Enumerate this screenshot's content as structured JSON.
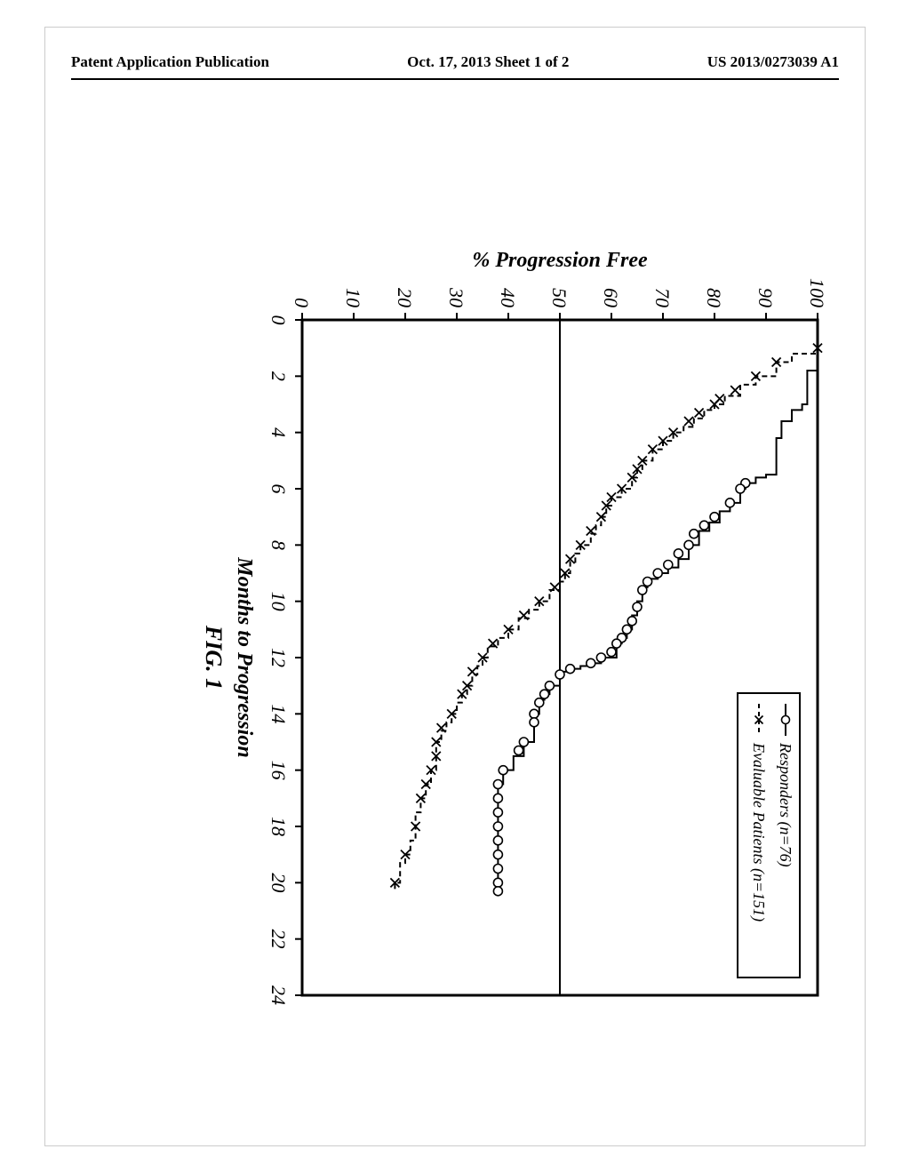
{
  "header": {
    "left": "Patent Application Publication",
    "center": "Oct. 17, 2013  Sheet 1 of 2",
    "right": "US 2013/0273039 A1"
  },
  "chart": {
    "type": "survival-step",
    "title": "FIG. 1",
    "xlabel": "Months to Progression",
    "ylabel": "% Progression Free",
    "xlim": [
      0,
      24
    ],
    "ylim": [
      0,
      100
    ],
    "xtick_step": 2,
    "ytick_step": 10,
    "xticks": [
      0,
      2,
      4,
      6,
      8,
      10,
      12,
      14,
      16,
      18,
      20,
      22,
      24
    ],
    "yticks": [
      0,
      10,
      20,
      30,
      40,
      50,
      60,
      70,
      80,
      90,
      100
    ],
    "border_width": 3,
    "reference_line_y": 50,
    "reference_line_color": "#000000",
    "background_color": "#ffffff",
    "axis_color": "#000000",
    "tick_fontsize": 22,
    "label_fontsize": 24,
    "title_fontsize": 26,
    "legend": {
      "position": "top-right",
      "border_color": "#000000",
      "border_width": 2,
      "items": [
        {
          "label": "Responders (n=76)",
          "marker": "circle",
          "line_style": "solid"
        },
        {
          "label": "Evaluable Patients (n=151)",
          "marker": "x",
          "line_style": "dashed"
        }
      ]
    },
    "series": [
      {
        "name": "Responders",
        "marker": "circle",
        "marker_size": 5,
        "line_style": "solid",
        "line_width": 2,
        "color": "#000000",
        "step_points": [
          [
            0,
            100
          ],
          [
            1.3,
            100
          ],
          [
            1.8,
            98
          ],
          [
            3.0,
            97
          ],
          [
            3.2,
            95
          ],
          [
            3.6,
            93
          ],
          [
            4.2,
            92
          ],
          [
            5.5,
            90
          ],
          [
            5.6,
            88
          ],
          [
            5.8,
            86
          ],
          [
            6.0,
            85
          ],
          [
            6.5,
            83
          ],
          [
            6.8,
            81
          ],
          [
            7.2,
            79
          ],
          [
            7.5,
            77
          ],
          [
            8.0,
            75
          ],
          [
            8.5,
            73
          ],
          [
            8.8,
            71
          ],
          [
            9.0,
            69
          ],
          [
            9.2,
            67
          ],
          [
            9.5,
            66
          ],
          [
            10.0,
            65
          ],
          [
            10.5,
            64
          ],
          [
            11.0,
            63
          ],
          [
            11.3,
            62
          ],
          [
            11.5,
            61
          ],
          [
            12.0,
            58
          ],
          [
            12.2,
            56
          ],
          [
            12.3,
            54
          ],
          [
            12.4,
            52
          ],
          [
            12.5,
            50
          ],
          [
            13.0,
            48
          ],
          [
            13.3,
            47
          ],
          [
            13.5,
            46
          ],
          [
            14.0,
            45
          ],
          [
            14.5,
            45
          ],
          [
            15.0,
            43
          ],
          [
            15.5,
            41
          ],
          [
            16.0,
            39
          ],
          [
            16.5,
            38
          ],
          [
            17.0,
            38
          ],
          [
            17.5,
            38
          ],
          [
            18.0,
            38
          ],
          [
            18.5,
            38
          ],
          [
            19.0,
            38
          ],
          [
            19.5,
            38
          ],
          [
            20.0,
            38
          ],
          [
            20.3,
            38
          ]
        ],
        "censored_points": [
          [
            5.8,
            86
          ],
          [
            6.0,
            85
          ],
          [
            6.5,
            83
          ],
          [
            7.0,
            80
          ],
          [
            7.3,
            78
          ],
          [
            7.6,
            76
          ],
          [
            8.0,
            75
          ],
          [
            8.3,
            73
          ],
          [
            8.7,
            71
          ],
          [
            9.0,
            69
          ],
          [
            9.3,
            67
          ],
          [
            9.6,
            66
          ],
          [
            10.2,
            65
          ],
          [
            10.7,
            64
          ],
          [
            11.0,
            63
          ],
          [
            11.3,
            62
          ],
          [
            11.5,
            61
          ],
          [
            11.8,
            60
          ],
          [
            12.0,
            58
          ],
          [
            12.2,
            56
          ],
          [
            12.4,
            52
          ],
          [
            12.6,
            50
          ],
          [
            13.0,
            48
          ],
          [
            13.3,
            47
          ],
          [
            13.6,
            46
          ],
          [
            14.0,
            45
          ],
          [
            14.3,
            45
          ],
          [
            15.0,
            43
          ],
          [
            15.3,
            42
          ],
          [
            16.0,
            39
          ],
          [
            16.5,
            38
          ],
          [
            17.0,
            38
          ],
          [
            17.5,
            38
          ],
          [
            18.0,
            38
          ],
          [
            18.5,
            38
          ],
          [
            19.0,
            38
          ],
          [
            19.5,
            38
          ],
          [
            20.0,
            38
          ],
          [
            20.3,
            38
          ]
        ]
      },
      {
        "name": "Evaluable Patients",
        "marker": "x",
        "marker_size": 5,
        "line_style": "dashed",
        "line_width": 2,
        "color": "#000000",
        "dash_pattern": "6,4",
        "step_points": [
          [
            0,
            100
          ],
          [
            1.0,
            100
          ],
          [
            1.2,
            95
          ],
          [
            1.5,
            92
          ],
          [
            2.0,
            88
          ],
          [
            2.3,
            85
          ],
          [
            2.7,
            82
          ],
          [
            3.0,
            80
          ],
          [
            3.2,
            78
          ],
          [
            3.5,
            76
          ],
          [
            3.8,
            74
          ],
          [
            4.0,
            72
          ],
          [
            4.3,
            70
          ],
          [
            4.6,
            68
          ],
          [
            5.0,
            66
          ],
          [
            5.3,
            65
          ],
          [
            5.6,
            64
          ],
          [
            6.0,
            62
          ],
          [
            6.3,
            60
          ],
          [
            6.6,
            59
          ],
          [
            7.0,
            58
          ],
          [
            7.3,
            57
          ],
          [
            7.6,
            56
          ],
          [
            8.0,
            54
          ],
          [
            8.3,
            53
          ],
          [
            8.6,
            52
          ],
          [
            9.0,
            51
          ],
          [
            9.3,
            50
          ],
          [
            9.6,
            48
          ],
          [
            10.0,
            46
          ],
          [
            10.3,
            44
          ],
          [
            10.6,
            42
          ],
          [
            11.0,
            40
          ],
          [
            11.3,
            38
          ],
          [
            11.6,
            36
          ],
          [
            12.0,
            35
          ],
          [
            12.3,
            34
          ],
          [
            12.6,
            33
          ],
          [
            13.0,
            32
          ],
          [
            13.3,
            31
          ],
          [
            13.6,
            30
          ],
          [
            14.0,
            29
          ],
          [
            14.3,
            28
          ],
          [
            14.6,
            27
          ],
          [
            15.0,
            26
          ],
          [
            15.5,
            26
          ],
          [
            16.0,
            25
          ],
          [
            16.5,
            24
          ],
          [
            17.0,
            23
          ],
          [
            17.5,
            22
          ],
          [
            18.0,
            22
          ],
          [
            18.5,
            21
          ],
          [
            19.0,
            20
          ],
          [
            19.3,
            19
          ],
          [
            20.0,
            18
          ],
          [
            20.3,
            18
          ]
        ],
        "censored_points": [
          [
            1.0,
            100
          ],
          [
            1.5,
            92
          ],
          [
            2.0,
            88
          ],
          [
            2.5,
            84
          ],
          [
            2.8,
            81
          ],
          [
            3.0,
            80
          ],
          [
            3.3,
            77
          ],
          [
            3.6,
            75
          ],
          [
            4.0,
            72
          ],
          [
            4.3,
            70
          ],
          [
            4.6,
            68
          ],
          [
            5.0,
            66
          ],
          [
            5.3,
            65
          ],
          [
            5.6,
            64
          ],
          [
            6.0,
            62
          ],
          [
            6.3,
            60
          ],
          [
            6.6,
            59
          ],
          [
            7.0,
            58
          ],
          [
            7.5,
            56
          ],
          [
            8.0,
            54
          ],
          [
            8.5,
            52
          ],
          [
            9.0,
            51
          ],
          [
            9.5,
            49
          ],
          [
            10.0,
            46
          ],
          [
            10.5,
            43
          ],
          [
            11.0,
            40
          ],
          [
            11.5,
            37
          ],
          [
            12.0,
            35
          ],
          [
            12.5,
            33
          ],
          [
            13.0,
            32
          ],
          [
            13.3,
            31
          ],
          [
            14.0,
            29
          ],
          [
            14.5,
            27
          ],
          [
            15.0,
            26
          ],
          [
            15.5,
            26
          ],
          [
            16.0,
            25
          ],
          [
            16.5,
            24
          ],
          [
            17.0,
            23
          ],
          [
            18.0,
            22
          ],
          [
            19.0,
            20
          ],
          [
            20.0,
            18
          ]
        ]
      }
    ]
  }
}
